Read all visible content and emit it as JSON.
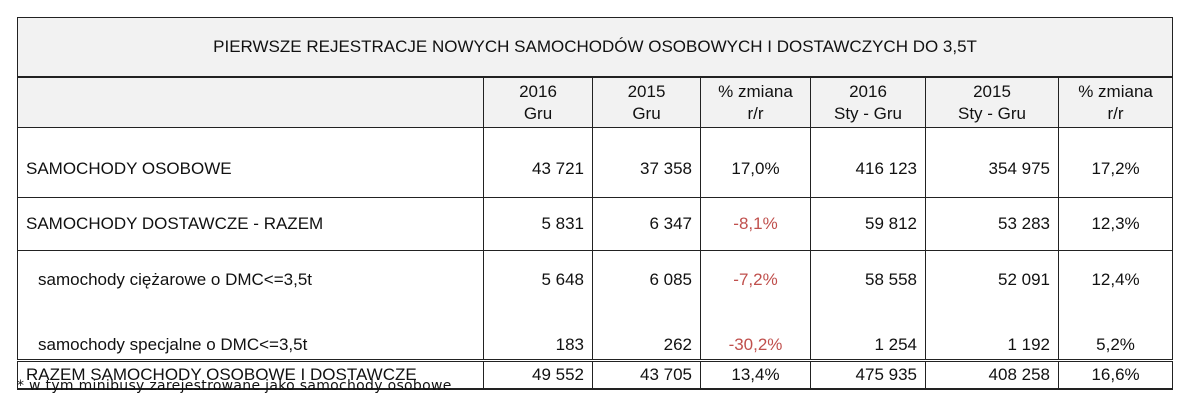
{
  "table": {
    "title": "PIERWSZE REJESTRACJE NOWYCH SAMOCHODÓW OSOBOWYCH I DOSTAWCZYCH DO 3,5T",
    "header": [
      [
        "2016",
        "Gru"
      ],
      [
        "2015",
        "Gru"
      ],
      [
        "% zmiana",
        "r/r"
      ],
      [
        "2016",
        "Sty - Gru"
      ],
      [
        "2015",
        "Sty - Gru"
      ],
      [
        "% zmiana",
        "r/r"
      ]
    ],
    "rows": [
      [
        "SAMOCHODY OSOBOWE",
        "43 721",
        "37 358",
        "17,0%",
        "416 123",
        "354 975",
        "17,2%"
      ],
      [
        "SAMOCHODY DOSTAWCZE - RAZEM",
        "5 831",
        "6 347",
        "-8,1%",
        "59 812",
        "53 283",
        "12,3%"
      ],
      [
        "samochody ciężarowe o DMC<=3,5t",
        "5 648",
        "6 085",
        "-7,2%",
        "58 558",
        "52 091",
        "12,4%"
      ],
      [
        "samochody specjalne o DMC<=3,5t",
        "183",
        "262",
        "-30,2%",
        "1 254",
        "1 192",
        "5,2%"
      ],
      [
        "RAZEM SAMOCHODY OSOBOWE I DOSTAWCZE",
        "49 552",
        "43 705",
        "13,4%",
        "475 935",
        "408 258",
        "16,6%"
      ]
    ],
    "footnote": "* w tym minibusy zarejestrowane jako samochody osobowe"
  }
}
